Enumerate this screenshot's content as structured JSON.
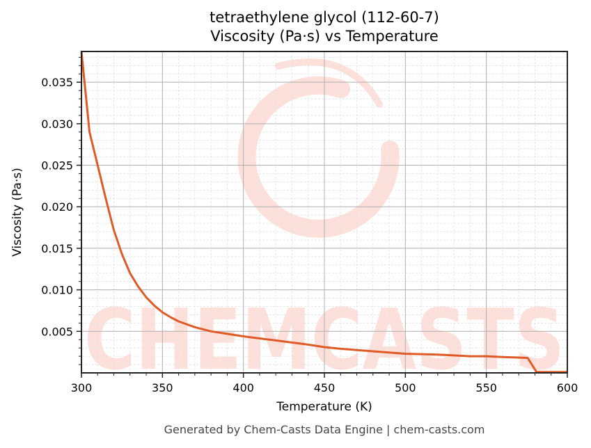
{
  "header": {
    "title_line1": "tetraethylene glycol (112-60-7)",
    "title_line2": "Viscosity (Pa·s) vs Temperature"
  },
  "footer": {
    "credit": "Generated by Chem-Casts Data Engine | chem-casts.com"
  },
  "watermark": {
    "text": "CHEMCASTS",
    "color": "#fde0da"
  },
  "colors": {
    "line": "#e05a25",
    "major_grid": "#b0b0b0",
    "minor_grid": "#e2e2e2",
    "axis": "#222222"
  },
  "chart_data": {
    "type": "line",
    "title": "tetraethylene glycol (112-60-7)\nViscosity (Pa·s) vs Temperature",
    "xlabel": "Temperature (K)",
    "ylabel": "Viscosity (Pa·s)",
    "xlim": [
      300,
      600
    ],
    "ylim": [
      0.0,
      0.0387
    ],
    "xticks": [
      300,
      350,
      400,
      450,
      500,
      550,
      600
    ],
    "xtick_labels": [
      "300",
      "350",
      "400",
      "450",
      "500",
      "550",
      "600"
    ],
    "yticks": [
      0.005,
      0.01,
      0.015,
      0.02,
      0.025,
      0.03,
      0.035
    ],
    "ytick_labels": [
      "0.005",
      "0.010",
      "0.015",
      "0.020",
      "0.025",
      "0.030",
      "0.035"
    ],
    "grid": true,
    "minor_grid": true,
    "legend": null,
    "series": [
      {
        "name": "Viscosity",
        "x": [
          300,
          305,
          310,
          315,
          320,
          325,
          330,
          335,
          340,
          345,
          350,
          355,
          360,
          370,
          380,
          390,
          400,
          420,
          440,
          450,
          460,
          480,
          500,
          520,
          540,
          550,
          560,
          575.5,
          581,
          600
        ],
        "values": [
          0.0387,
          0.029,
          0.025,
          0.021,
          0.0172,
          0.0143,
          0.012,
          0.0104,
          0.0091,
          0.0081,
          0.0073,
          0.0067,
          0.0062,
          0.0055,
          0.005,
          0.0047,
          0.0044,
          0.0039,
          0.0034,
          0.0031,
          0.0029,
          0.0026,
          0.0023,
          0.0022,
          0.002,
          0.002,
          0.0019,
          0.0018,
          0.0001,
          0.0001
        ]
      }
    ]
  }
}
